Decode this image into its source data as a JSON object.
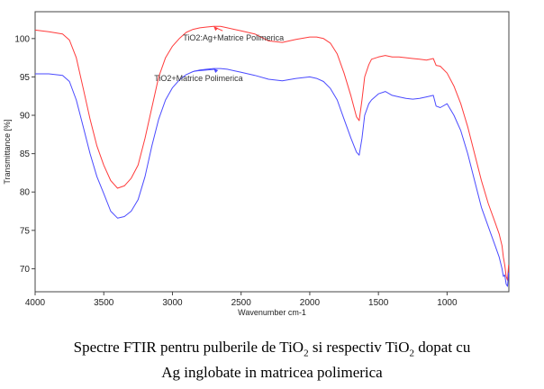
{
  "chart_data": {
    "type": "line",
    "title": "",
    "xlabel": "Wavenumber cm-1",
    "ylabel": "Transmittance [%]",
    "xlim": [
      4000,
      550
    ],
    "x_reversed": true,
    "ylim": [
      67,
      103.5
    ],
    "xticks": [
      4000,
      3500,
      3000,
      2500,
      2000,
      1500,
      1000
    ],
    "yticks": [
      70,
      75,
      80,
      85,
      90,
      95,
      100
    ],
    "grid": false,
    "legend": "none",
    "series": [
      {
        "name": "TiO2:Ag+Matrice Polimerica",
        "color": "#ff3b3b",
        "points": [
          [
            4000,
            101.1
          ],
          [
            3900,
            100.9
          ],
          [
            3800,
            100.6
          ],
          [
            3750,
            99.8
          ],
          [
            3700,
            97.5
          ],
          [
            3650,
            93.5
          ],
          [
            3600,
            89.5
          ],
          [
            3550,
            86.0
          ],
          [
            3500,
            83.5
          ],
          [
            3450,
            81.5
          ],
          [
            3400,
            80.5
          ],
          [
            3350,
            80.8
          ],
          [
            3300,
            81.8
          ],
          [
            3250,
            83.5
          ],
          [
            3200,
            87.0
          ],
          [
            3150,
            91.0
          ],
          [
            3100,
            95.0
          ],
          [
            3050,
            97.5
          ],
          [
            3000,
            99.0
          ],
          [
            2950,
            100.0
          ],
          [
            2900,
            100.8
          ],
          [
            2850,
            101.2
          ],
          [
            2800,
            101.4
          ],
          [
            2750,
            101.5
          ],
          [
            2700,
            101.6
          ],
          [
            2650,
            101.6
          ],
          [
            2600,
            101.4
          ],
          [
            2550,
            101.2
          ],
          [
            2500,
            101.0
          ],
          [
            2400,
            100.6
          ],
          [
            2300,
            99.7
          ],
          [
            2200,
            99.5
          ],
          [
            2100,
            99.9
          ],
          [
            2000,
            100.2
          ],
          [
            1950,
            100.2
          ],
          [
            1900,
            100.0
          ],
          [
            1850,
            99.4
          ],
          [
            1800,
            98.0
          ],
          [
            1750,
            95.5
          ],
          [
            1700,
            92.5
          ],
          [
            1660,
            89.8
          ],
          [
            1640,
            89.3
          ],
          [
            1620,
            92.0
          ],
          [
            1600,
            95.0
          ],
          [
            1570,
            96.6
          ],
          [
            1550,
            97.3
          ],
          [
            1500,
            97.6
          ],
          [
            1450,
            97.8
          ],
          [
            1400,
            97.6
          ],
          [
            1350,
            97.6
          ],
          [
            1300,
            97.5
          ],
          [
            1250,
            97.4
          ],
          [
            1200,
            97.3
          ],
          [
            1150,
            97.2
          ],
          [
            1100,
            97.4
          ],
          [
            1080,
            96.5
          ],
          [
            1050,
            96.4
          ],
          [
            1000,
            95.5
          ],
          [
            950,
            93.8
          ],
          [
            900,
            91.5
          ],
          [
            850,
            88.5
          ],
          [
            800,
            85.0
          ],
          [
            750,
            81.5
          ],
          [
            700,
            78.5
          ],
          [
            650,
            76.0
          ],
          [
            620,
            74.5
          ],
          [
            600,
            73.0
          ],
          [
            590,
            71.5
          ],
          [
            580,
            70.5
          ],
          [
            570,
            69.0
          ],
          [
            560,
            68.5
          ],
          [
            552,
            70.5
          ]
        ]
      },
      {
        "name": "TiO2+Matrice Polimerica",
        "color": "#4a4aff",
        "points": [
          [
            4000,
            95.4
          ],
          [
            3900,
            95.4
          ],
          [
            3800,
            95.2
          ],
          [
            3750,
            94.4
          ],
          [
            3700,
            92.0
          ],
          [
            3650,
            88.5
          ],
          [
            3600,
            85.0
          ],
          [
            3550,
            82.0
          ],
          [
            3500,
            79.8
          ],
          [
            3450,
            77.5
          ],
          [
            3400,
            76.6
          ],
          [
            3350,
            76.8
          ],
          [
            3300,
            77.5
          ],
          [
            3250,
            79.0
          ],
          [
            3200,
            82.0
          ],
          [
            3150,
            86.0
          ],
          [
            3100,
            89.5
          ],
          [
            3050,
            92.0
          ],
          [
            3000,
            93.6
          ],
          [
            2950,
            94.6
          ],
          [
            2900,
            95.3
          ],
          [
            2850,
            95.7
          ],
          [
            2800,
            95.9
          ],
          [
            2750,
            96.0
          ],
          [
            2700,
            96.1
          ],
          [
            2650,
            96.1
          ],
          [
            2600,
            96.0
          ],
          [
            2550,
            95.8
          ],
          [
            2500,
            95.6
          ],
          [
            2400,
            95.2
          ],
          [
            2300,
            94.7
          ],
          [
            2200,
            94.5
          ],
          [
            2100,
            94.8
          ],
          [
            2000,
            95.0
          ],
          [
            1950,
            94.8
          ],
          [
            1900,
            94.4
          ],
          [
            1850,
            93.5
          ],
          [
            1800,
            92.0
          ],
          [
            1750,
            89.5
          ],
          [
            1700,
            87.0
          ],
          [
            1660,
            85.2
          ],
          [
            1640,
            84.8
          ],
          [
            1620,
            87.0
          ],
          [
            1600,
            90.0
          ],
          [
            1570,
            91.5
          ],
          [
            1550,
            92.0
          ],
          [
            1500,
            92.8
          ],
          [
            1450,
            93.1
          ],
          [
            1400,
            92.6
          ],
          [
            1350,
            92.4
          ],
          [
            1300,
            92.2
          ],
          [
            1250,
            92.1
          ],
          [
            1200,
            92.2
          ],
          [
            1150,
            92.4
          ],
          [
            1100,
            92.6
          ],
          [
            1080,
            91.2
          ],
          [
            1050,
            91.0
          ],
          [
            1000,
            91.5
          ],
          [
            950,
            90.0
          ],
          [
            900,
            88.0
          ],
          [
            850,
            85.0
          ],
          [
            800,
            81.5
          ],
          [
            750,
            78.0
          ],
          [
            700,
            75.5
          ],
          [
            650,
            73.0
          ],
          [
            620,
            71.5
          ],
          [
            600,
            70.0
          ],
          [
            590,
            69.0
          ],
          [
            580,
            69.2
          ],
          [
            570,
            68.0
          ],
          [
            560,
            67.7
          ],
          [
            552,
            69.5
          ]
        ]
      }
    ],
    "annotations": [
      {
        "text": "TiO2:Ag+Matrice Polimerica",
        "x": 2700,
        "y": 101.6
      },
      {
        "text": "TiO2+Matrice Polimerica",
        "x": 2700,
        "y": 96.1
      }
    ]
  },
  "caption": {
    "line1_a": "Spectre FTIR pentru pulberile de TiO",
    "sub1": "2",
    "line1_b": " si respectiv TiO",
    "sub2": "2",
    "line1_c": " dopat cu",
    "line2": "Ag inglobate in matricea polimerica"
  }
}
